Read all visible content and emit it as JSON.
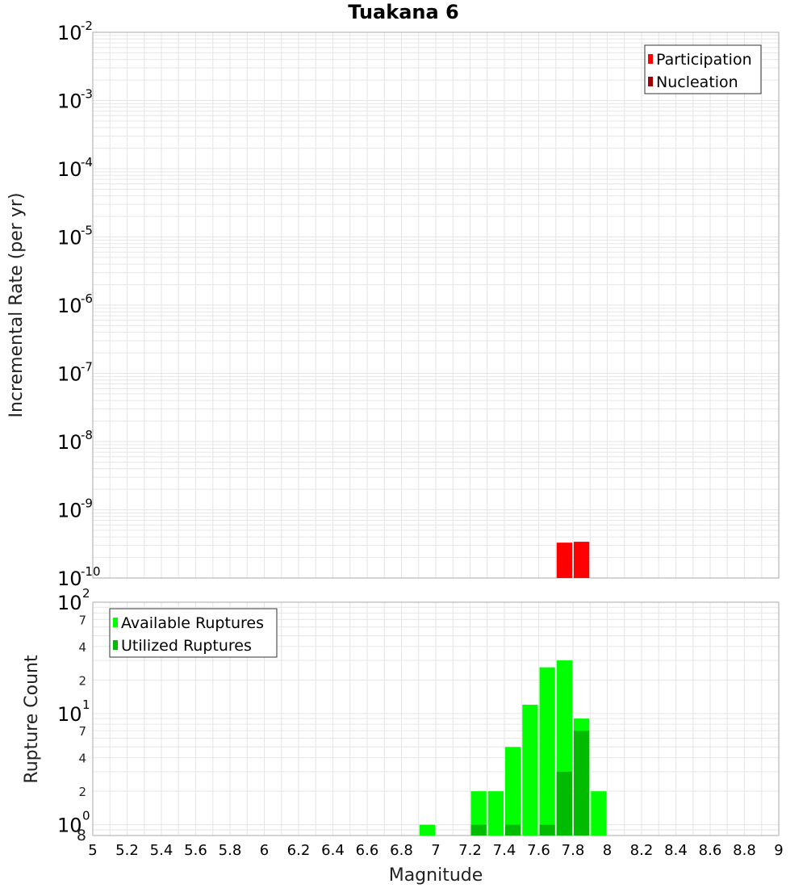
{
  "colors": {
    "participation": "#ff0000",
    "nucleation": "#a40000",
    "available": "#00ff00",
    "utilized": "#00bb00",
    "grid": "#e6e6e6",
    "frame": "#aaaaaa"
  },
  "chart_data": [
    {
      "type": "bar",
      "title": "Tuakana 6",
      "xlabel": "",
      "ylabel": "Incremental Rate (per yr)",
      "xlim": [
        5,
        9
      ],
      "ylim": [
        1e-10,
        0.01
      ],
      "y_scale": "log",
      "grid": true,
      "legend_position": "top-right",
      "y_ticks": [
        {
          "base": "10",
          "exp": "-10",
          "value": 1e-10
        },
        {
          "base": "10",
          "exp": "-9",
          "value": 1e-09
        },
        {
          "base": "10",
          "exp": "-8",
          "value": 1e-08
        },
        {
          "base": "10",
          "exp": "-7",
          "value": 1e-07
        },
        {
          "base": "10",
          "exp": "-6",
          "value": 1e-06
        },
        {
          "base": "10",
          "exp": "-5",
          "value": 1e-05
        },
        {
          "base": "10",
          "exp": "-4",
          "value": 0.0001
        },
        {
          "base": "10",
          "exp": "-3",
          "value": 0.001
        },
        {
          "base": "10",
          "exp": "-2",
          "value": 0.01
        }
      ],
      "series": [
        {
          "name": "Participation",
          "x": [
            7.75,
            7.85
          ],
          "values": [
            3.3e-10,
            3.4e-10
          ]
        },
        {
          "name": "Nucleation",
          "x": [],
          "values": []
        }
      ]
    },
    {
      "type": "bar",
      "xlabel": "Magnitude",
      "ylabel": "Rupture Count",
      "xlim": [
        5,
        9
      ],
      "ylim": [
        0.8,
        100
      ],
      "y_scale": "log",
      "grid": true,
      "legend_position": "top-left",
      "x_ticks": [
        "5",
        "5.2",
        "5.4",
        "5.6",
        "5.8",
        "6",
        "6.2",
        "6.4",
        "6.6",
        "6.8",
        "7",
        "7.2",
        "7.4",
        "7.6",
        "7.8",
        "8",
        "8.2",
        "8.4",
        "8.6",
        "8.8",
        "9"
      ],
      "y_ticks": [
        {
          "base": "10",
          "exp": "0",
          "value": 1
        },
        {
          "base": "10",
          "exp": "1",
          "value": 10
        },
        {
          "base": "10",
          "exp": "2",
          "value": 100
        }
      ],
      "y_minor_ticks": [
        {
          "label": "8",
          "value": 0.8
        },
        {
          "label": "2",
          "value": 2
        },
        {
          "label": "4",
          "value": 4
        },
        {
          "label": "7",
          "value": 7
        },
        {
          "label": "2",
          "value": 20
        },
        {
          "label": "4",
          "value": 40
        },
        {
          "label": "7",
          "value": 70
        }
      ],
      "series": [
        {
          "name": "Available Ruptures",
          "x": [
            6.95,
            7.25,
            7.35,
            7.45,
            7.55,
            7.65,
            7.75,
            7.85,
            7.95
          ],
          "values": [
            1,
            2,
            2,
            5,
            12,
            26,
            30,
            9,
            2
          ]
        },
        {
          "name": "Utilized Ruptures",
          "x": [
            7.25,
            7.45,
            7.65,
            7.75,
            7.85
          ],
          "values": [
            1,
            1,
            1,
            3,
            7
          ]
        }
      ]
    }
  ]
}
